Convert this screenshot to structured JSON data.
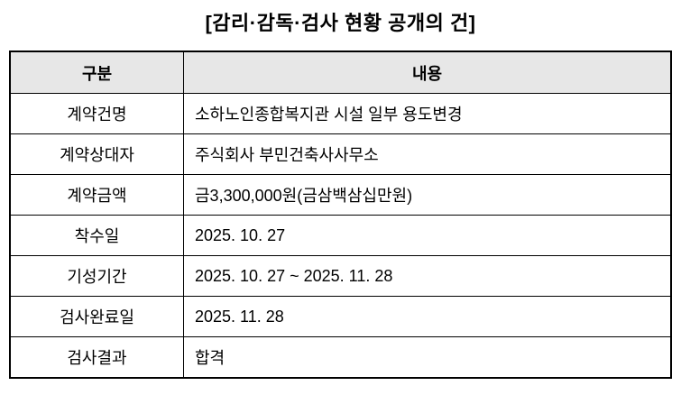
{
  "title": "[감리·감독·검사 현황 공개의 건]",
  "table": {
    "headers": [
      "구분",
      "내용"
    ],
    "rows": [
      {
        "label": "계약건명",
        "value": "소하노인종합복지관 시설 일부 용도변경"
      },
      {
        "label": "계약상대자",
        "value": "주식회사 부민건축사사무소"
      },
      {
        "label": "계약금액",
        "value": "금3,300,000원(금삼백삼십만원)"
      },
      {
        "label": "착수일",
        "value": "2025. 10. 27"
      },
      {
        "label": "기성기간",
        "value": "2025. 10. 27 ~ 2025. 11. 28"
      },
      {
        "label": "검사완료일",
        "value": "2025. 11. 28"
      },
      {
        "label": "검사결과",
        "value": "합격"
      }
    ]
  },
  "colors": {
    "header_bg": "#e7e7e7",
    "border": "#000000",
    "text": "#000000",
    "page_bg": "#ffffff"
  }
}
